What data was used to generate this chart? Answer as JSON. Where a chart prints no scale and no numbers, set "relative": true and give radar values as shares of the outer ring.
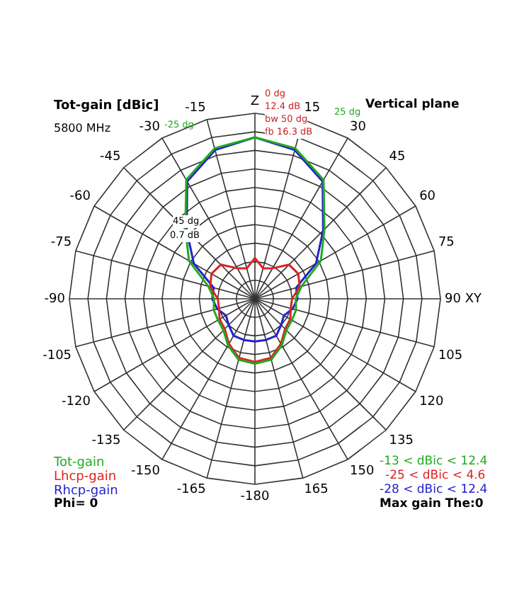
{
  "chart_data": {
    "type": "radar",
    "title": "Tot-gain [dBic]",
    "subtitle": "5800 MHz",
    "relative": true,
    "grid": true,
    "legend": "bottom left",
    "marker": "none",
    "categories": [
      "Z",
      "15",
      "30",
      "45",
      "60",
      "75",
      "90 XY",
      "105",
      "120",
      "135",
      "150",
      "165",
      "-180",
      "-165",
      "-150",
      "-135",
      "-120",
      "-105",
      "-90",
      "-75",
      "-60",
      "-45",
      "-30",
      "-15"
    ],
    "series": [
      {
        "name": "Tot-gain",
        "color": "#22aa22",
        "values": [
          0.87,
          0.84,
          0.74,
          0.53,
          0.41,
          0.26,
          0.22,
          0.23,
          0.23,
          0.24,
          0.29,
          0.34,
          0.35,
          0.34,
          0.29,
          0.24,
          0.23,
          0.23,
          0.22,
          0.26,
          0.41,
          0.53,
          0.74,
          0.84
        ]
      },
      {
        "name": "Lhcp-gain",
        "color": "#dd2222",
        "values": [
          0.22,
          0.17,
          0.19,
          0.26,
          0.27,
          0.25,
          0.2,
          0.2,
          0.22,
          0.23,
          0.28,
          0.33,
          0.34,
          0.33,
          0.28,
          0.23,
          0.22,
          0.2,
          0.2,
          0.25,
          0.27,
          0.26,
          0.19,
          0.17
        ]
      },
      {
        "name": "Rhcp-gain",
        "color": "#2222cc",
        "values": [
          0.87,
          0.83,
          0.73,
          0.52,
          0.38,
          0.23,
          0.23,
          0.21,
          0.18,
          0.2,
          0.23,
          0.23,
          0.23,
          0.23,
          0.23,
          0.2,
          0.18,
          0.21,
          0.23,
          0.23,
          0.38,
          0.52,
          0.73,
          0.83
        ]
      }
    ],
    "annotations": [
      "Vertical plane",
      "0 dg",
      "12.4 dB",
      "bw 50 dg",
      "fb 16.3 dB",
      "-25 dg",
      "25 dg",
      "45 dg",
      "0.7 dB",
      "-13 < dBic < 12.4",
      "-25 < dBic < 4.6",
      "-28 < dBic < 12.4",
      "Phi= 0",
      "Max gain The:0"
    ]
  }
}
